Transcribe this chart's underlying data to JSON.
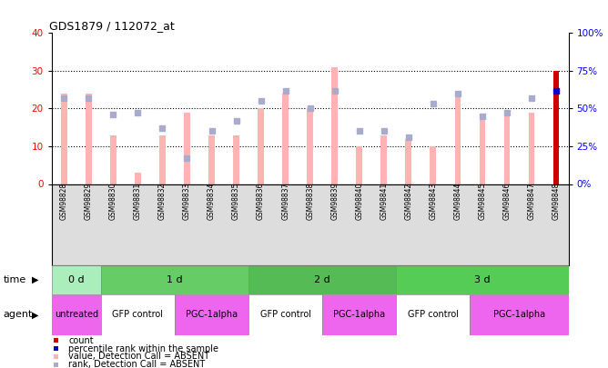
{
  "title": "GDS1879 / 112072_at",
  "samples": [
    "GSM98828",
    "GSM98829",
    "GSM98830",
    "GSM98831",
    "GSM98832",
    "GSM98833",
    "GSM98834",
    "GSM98835",
    "GSM98836",
    "GSM98837",
    "GSM98838",
    "GSM98839",
    "GSM98840",
    "GSM98841",
    "GSM98842",
    "GSM98843",
    "GSM98844",
    "GSM98845",
    "GSM98846",
    "GSM98847",
    "GSM98848"
  ],
  "bar_values": [
    24,
    24,
    13,
    3,
    13,
    19,
    13,
    13,
    20,
    24,
    20,
    31,
    10,
    13,
    12,
    10,
    24,
    18,
    19,
    19,
    30
  ],
  "rank_values": [
    57,
    57,
    46,
    47,
    37,
    17,
    35,
    42,
    55,
    62,
    50,
    62,
    35,
    35,
    31,
    53,
    60,
    45,
    47,
    57,
    62
  ],
  "last_bar_present": true,
  "last_rank_present": true,
  "bar_color_absent": "#FFB3B3",
  "rank_color_absent": "#AAAACC",
  "bar_color_present": "#CC0000",
  "rank_color_present": "#0000CC",
  "ylim_left": [
    0,
    40
  ],
  "ylim_right": [
    0,
    100
  ],
  "yticks_left": [
    0,
    10,
    20,
    30,
    40
  ],
  "yticks_right": [
    0,
    25,
    50,
    75,
    100
  ],
  "time_groups": [
    {
      "label": "0 d",
      "start": 0,
      "end": 2,
      "color": "#AAEEBB"
    },
    {
      "label": "1 d",
      "start": 2,
      "end": 8,
      "color": "#66CC66"
    },
    {
      "label": "2 d",
      "start": 8,
      "end": 14,
      "color": "#55BB55"
    },
    {
      "label": "3 d",
      "start": 14,
      "end": 21,
      "color": "#55CC55"
    }
  ],
  "agent_groups": [
    {
      "label": "untreated",
      "start": 0,
      "end": 2,
      "color": "#EE66EE"
    },
    {
      "label": "GFP control",
      "start": 2,
      "end": 5,
      "color": "#FFFFFF"
    },
    {
      "label": "PGC-1alpha",
      "start": 5,
      "end": 8,
      "color": "#EE66EE"
    },
    {
      "label": "GFP control",
      "start": 8,
      "end": 11,
      "color": "#FFFFFF"
    },
    {
      "label": "PGC-1alpha",
      "start": 11,
      "end": 14,
      "color": "#EE66EE"
    },
    {
      "label": "GFP control",
      "start": 14,
      "end": 17,
      "color": "#FFFFFF"
    },
    {
      "label": "PGC-1alpha",
      "start": 17,
      "end": 21,
      "color": "#EE66EE"
    }
  ],
  "legend_items": [
    {
      "label": "count",
      "color": "#CC0000"
    },
    {
      "label": "percentile rank within the sample",
      "color": "#0000CC"
    },
    {
      "label": "value, Detection Call = ABSENT",
      "color": "#FFB3B3"
    },
    {
      "label": "rank, Detection Call = ABSENT",
      "color": "#AAAACC"
    }
  ],
  "bg_color": "#FFFFFF",
  "xtick_bg": "#DDDDDD"
}
